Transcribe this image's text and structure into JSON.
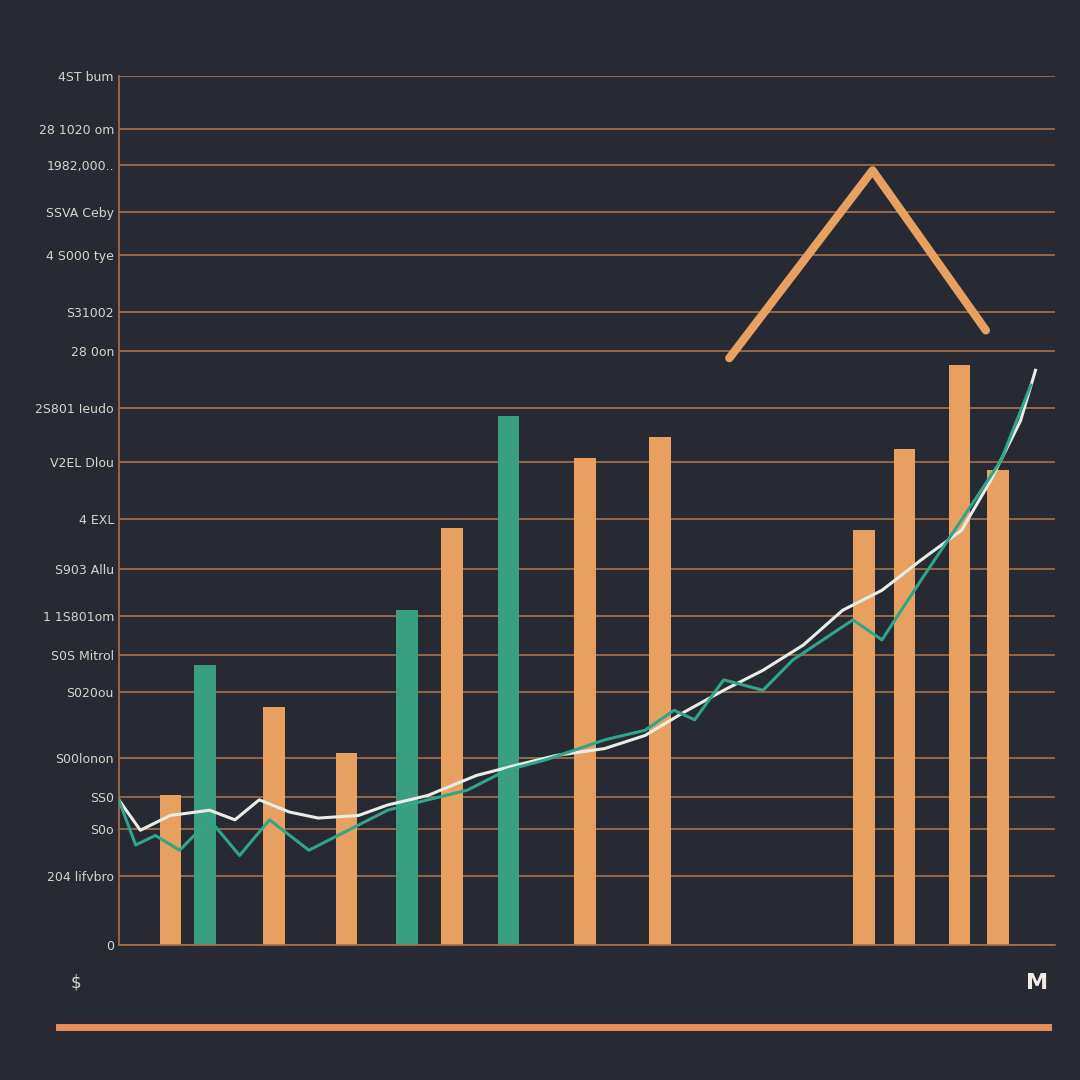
{
  "chart_data": {
    "type": "bar",
    "xlim": [
      0,
      100
    ],
    "xticks": [],
    "ylim": [
      0,
      100
    ],
    "yticks": [
      0,
      {
        "value": 7.9,
        "label": "204 lifvbro"
      },
      {
        "value": 13.3,
        "label": "S0o"
      },
      {
        "value": 17.0,
        "label": "SS0"
      },
      {
        "value": 21.5,
        "label": "S00lonon"
      },
      {
        "value": 29.1,
        "label": "S020ou"
      },
      {
        "value": 33.3,
        "label": "S0S Mitrol"
      },
      {
        "value": 37.8,
        "label": "1 1S801om"
      },
      {
        "value": 43.3,
        "label": "S903 Allu"
      },
      {
        "value": 49.0,
        "label": "4 EXL"
      },
      {
        "value": 55.5,
        "label": "V2EL Dlou"
      },
      {
        "value": 61.8,
        "label": "2S801 Ieudo"
      },
      {
        "value": 68.3,
        "label": "28 0on"
      },
      {
        "value": 72.8,
        "label": "S31002"
      },
      {
        "value": 79.4,
        "label": "4 S000 tye"
      },
      {
        "value": 84.3,
        "label": "SSVA Ceby"
      },
      {
        "value": 89.7,
        "label": "1982,000.."
      },
      {
        "value": 93.9,
        "label": "28 1020 om"
      },
      {
        "value": 100,
        "label": "4ST bum"
      }
    ],
    "grid": true,
    "tick_labels": "y",
    "annotations": [
      "$",
      "M"
    ],
    "series": [
      {
        "type": "bar",
        "color": "#e8a060",
        "x": [
          5.5,
          16.6,
          24.3,
          35.6,
          49.8,
          57.8,
          79.6,
          83.9,
          89.8,
          93.9
        ],
        "values": [
          17.2,
          27.4,
          22.1,
          48.0,
          56.0,
          58.4,
          47.7,
          57.1,
          66.7,
          54.6
        ]
      },
      {
        "type": "bar",
        "color": "#3a9e80",
        "x": [
          9.2,
          30.8,
          41.6
        ],
        "values": [
          32.2,
          38.5,
          60.9
        ]
      },
      {
        "type": "line",
        "color": "#e8eee6",
        "x": [
          0.0,
          2.3,
          5.5,
          9.7,
          12.4,
          15.0,
          18.2,
          21.3,
          25.6,
          28.7,
          33.0,
          38.2,
          42.5,
          46.7,
          51.9,
          56.2,
          60.4,
          64.6,
          68.8,
          73.1,
          77.3,
          81.5,
          85.7,
          90.0,
          93.1,
          96.3,
          97.9
        ],
        "values": [
          16.7,
          13.2,
          14.9,
          15.5,
          14.4,
          16.7,
          15.3,
          14.6,
          14.9,
          16.1,
          17.2,
          19.5,
          20.7,
          21.8,
          22.6,
          24.1,
          26.8,
          29.3,
          31.6,
          34.5,
          38.5,
          40.8,
          44.3,
          47.7,
          53.4,
          60.3,
          66.1
        ]
      },
      {
        "type": "line",
        "color": "#2fa58a",
        "x": [
          0.0,
          1.8,
          3.9,
          6.5,
          9.7,
          12.9,
          16.1,
          20.3,
          24.5,
          28.7,
          33.0,
          37.2,
          41.4,
          45.6,
          51.9,
          56.2,
          59.3,
          61.5,
          64.6,
          68.8,
          72.0,
          75.2,
          78.4,
          81.5,
          85.7,
          90.0,
          94.2,
          97.4
        ],
        "values": [
          16.7,
          11.5,
          12.6,
          10.9,
          14.4,
          10.3,
          14.4,
          10.9,
          13.2,
          15.5,
          16.7,
          17.8,
          20.1,
          21.3,
          23.6,
          24.7,
          27.0,
          25.9,
          30.5,
          29.3,
          32.8,
          35.1,
          37.4,
          35.1,
          42.0,
          48.9,
          55.7,
          64.4
        ]
      }
    ]
  }
}
